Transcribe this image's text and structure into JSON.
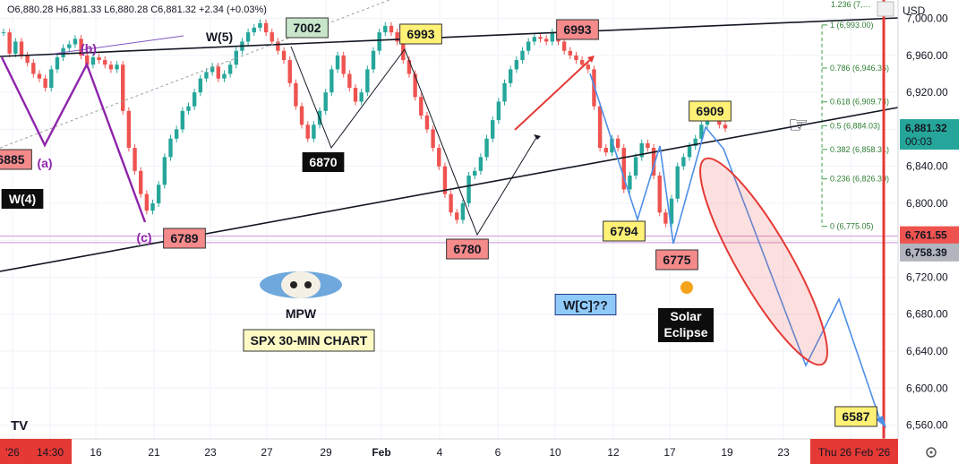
{
  "header": {
    "ohlc": "O6,880.28 H6,881.33 L6,880.28 C6,881.32 +2.34 (+0.03%)",
    "top_right_value": "1.236 (7,…",
    "currency": "USD"
  },
  "footer": {
    "logo": "TV",
    "left_date": "'26",
    "left_time": "14:30",
    "right_date": "Thu 26 Feb '26",
    "settings_icon": "settings-icon"
  },
  "colors": {
    "up": "#26a69a",
    "down": "#ef5350",
    "trend": "#131722",
    "purple": "#8e24aa",
    "blue": "#4d8fe8",
    "red": "#e53935",
    "fib": "#43a047",
    "eclipse": "#f5a31a"
  },
  "chart_data": {
    "type": "line",
    "title": "SPX 30-MIN CHART",
    "watermark": "MPW",
    "symbol_note": "USD",
    "x_ticks": [
      "'26",
      "14:30",
      "16",
      "21",
      "23",
      "27",
      "29",
      "Feb",
      "4",
      "6",
      "10",
      "12",
      "17",
      "19",
      "23",
      "Thu 26 Feb '26"
    ],
    "y_ticks": [
      7000,
      6960,
      6920,
      6880,
      6840,
      6800,
      6760,
      6720,
      6680,
      6640,
      6600,
      6560
    ],
    "ylim": [
      6545,
      7020
    ],
    "price_tags": [
      {
        "label": "6,881.32",
        "sub": "00:03",
        "value": 6881.32,
        "color": "#26a69a"
      },
      {
        "label": "6,761.55",
        "value": 6761.55,
        "color": "#ef5350"
      },
      {
        "label": "6,758.39",
        "value": 6758.39,
        "color": "#b2b5be"
      }
    ],
    "fib_levels": [
      {
        "ratio": "1 (6,993.00)",
        "value": 6993.0
      },
      {
        "ratio": "0.786 (6,946.36)",
        "value": 6946.36
      },
      {
        "ratio": "0.618 (6,909.74)",
        "value": 6909.74
      },
      {
        "ratio": "0.5 (6,884.03)",
        "value": 6884.03
      },
      {
        "ratio": "0.382 (6,858.31)",
        "value": 6858.31
      },
      {
        "ratio": "0.236 (6,826.39)",
        "value": 6826.39
      },
      {
        "ratio": "0 (6,775.05)",
        "value": 6775.05
      }
    ],
    "wave_labels": [
      {
        "text": "W(5)",
        "style": "plain"
      },
      {
        "text": "W(4)",
        "style": "dark"
      },
      {
        "text": "W[C]??",
        "style": "blue"
      },
      {
        "text": "(b)",
        "style": "purple"
      },
      {
        "text": "(a)",
        "style": "purple"
      },
      {
        "text": "(c)",
        "style": "purple"
      }
    ],
    "price_labels": [
      {
        "text": "7002",
        "style": "green"
      },
      {
        "text": "6993",
        "style": "yellow"
      },
      {
        "text": "6993",
        "style": "red"
      },
      {
        "text": "6909",
        "style": "yellow"
      },
      {
        "text": "6870",
        "style": "dark"
      },
      {
        "text": "6885",
        "style": "red"
      },
      {
        "text": "6789",
        "style": "red"
      },
      {
        "text": "6780",
        "style": "red"
      },
      {
        "text": "6794",
        "style": "yellow"
      },
      {
        "text": "6775",
        "style": "red"
      },
      {
        "text": "6587",
        "style": "yellow"
      }
    ],
    "annotations": [
      "Solar Eclipse"
    ],
    "projection": {
      "points": [
        6850,
        6630,
        6705,
        6568
      ]
    },
    "series": [
      {
        "name": "SPX",
        "values": [
          6985,
          6962,
          6975,
          6960,
          6952,
          6940,
          6935,
          6925,
          6945,
          6958,
          6968,
          6972,
          6978,
          6960,
          6950,
          6958,
          6955,
          6950,
          6945,
          6950,
          6900,
          6860,
          6835,
          6810,
          6792,
          6800,
          6820,
          6850,
          6870,
          6880,
          6900,
          6905,
          6920,
          6935,
          6942,
          6948,
          6935,
          6940,
          6950,
          6965,
          6975,
          6985,
          6990,
          6995,
          6985,
          6975,
          6965,
          6955,
          6930,
          6905,
          6885,
          6870,
          6885,
          6900,
          6920,
          6945,
          6960,
          6940,
          6925,
          6910,
          6920,
          6945,
          6965,
          6985,
          6992,
          6985,
          6975,
          6955,
          6940,
          6915,
          6895,
          6880,
          6860,
          6840,
          6810,
          6790,
          6782,
          6800,
          6830,
          6835,
          6850,
          6870,
          6890,
          6910,
          6930,
          6945,
          6955,
          6965,
          6975,
          6980,
          6978,
          6975,
          6985,
          6975,
          6965,
          6960,
          6955,
          6950,
          6945,
          6905,
          6860,
          6855,
          6870,
          6860,
          6815,
          6830,
          6850,
          6865,
          6860,
          6830,
          6790,
          6778,
          6805,
          6840,
          6850,
          6862,
          6870,
          6885,
          6900,
          6895,
          6885,
          6881
        ]
      }
    ]
  }
}
